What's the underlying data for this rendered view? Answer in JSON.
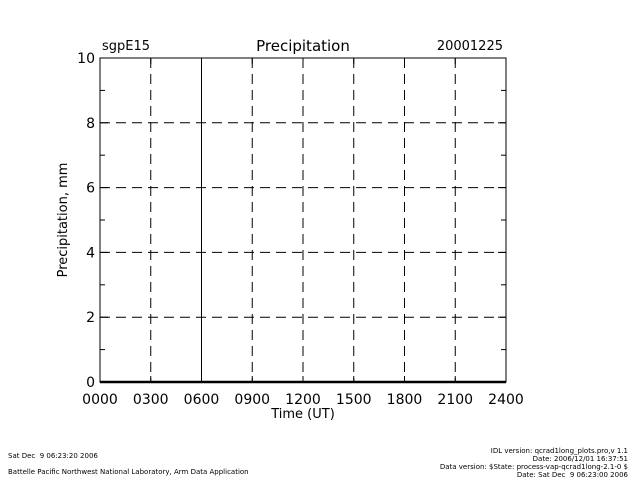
{
  "chart_data": {
    "type": "line",
    "title": "Precipitation",
    "site": "sgpE15",
    "date": "20001225",
    "xlabel": "Time (UT)",
    "ylabel": "Precipitation, mm",
    "xlim": [
      0,
      24
    ],
    "ylim": [
      0,
      10
    ],
    "xtick_values": [
      0,
      3,
      6,
      9,
      12,
      15,
      18,
      21,
      24
    ],
    "xtick_labels": [
      "0000",
      "0300",
      "0600",
      "0900",
      "1200",
      "1500",
      "1800",
      "2100",
      "2400"
    ],
    "ytick_values": [
      0,
      2,
      4,
      6,
      8,
      10
    ],
    "ytick_labels": [
      "0",
      "2",
      "4",
      "6",
      "8",
      "10"
    ],
    "grid": true,
    "series": [
      {
        "x": [
          0,
          24
        ],
        "y": [
          0,
          0
        ]
      }
    ]
  },
  "footer": {
    "left_line1": "Sat Dec  9 06:23:20 2006",
    "left_line2": "Battelle Pacific Northwest National Laboratory, Arm Data Application",
    "right_line1": "IDL version: qcrad1long_plots.pro,v 1.1",
    "right_line2": "Date: 2006/12/01 16:37:51",
    "right_line3": "Data version: $State: process-vap-qcrad1long-2.1-0 $",
    "right_line4": "Date: Sat Dec  9 06:23:00 2006"
  }
}
